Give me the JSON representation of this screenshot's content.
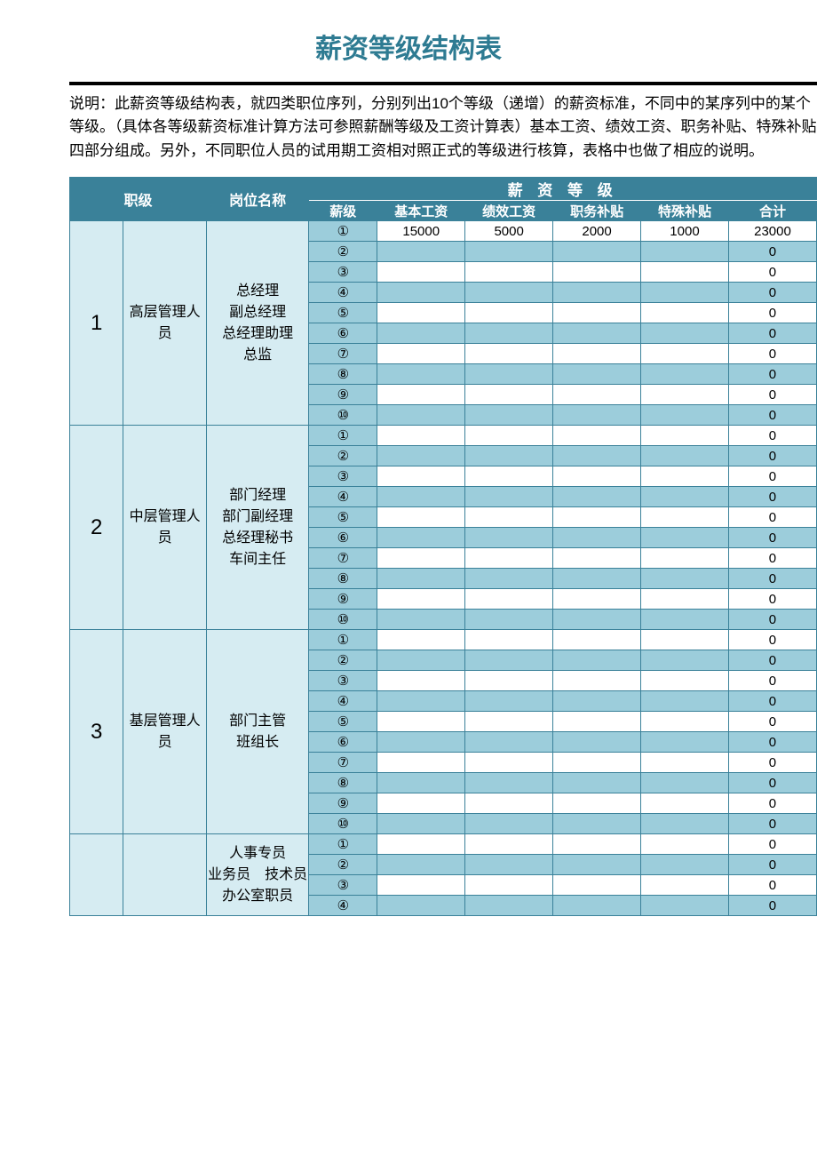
{
  "title": "薪资等级结构表",
  "description": "说明：此薪资等级结构表，就四类职位序列，分别列出10个等级（递增）的薪资标准，不同中的某序列中的某个等级。（具体各等级薪资标准计算方法可参照薪酬等级及工资计算表）基本工资、绩效工资、职务补贴、特殊补贴四部分组成。另外，不同职位人员的试用期工资相对照正式的等级进行核算，表格中也做了相应的说明。",
  "colors": {
    "header_bg": "#3a8199",
    "header_fg": "#ffffff",
    "light_bg": "#d6ecf2",
    "band_bg": "#9ccddb",
    "border": "#3a8199",
    "title_color": "#2e7b92"
  },
  "headers": {
    "rank": "职级",
    "position": "岗位名称",
    "salary_group": "薪 资 等 级",
    "level": "薪级",
    "base": "基本工资",
    "perf": "绩效工资",
    "duty": "职务补贴",
    "special": "特殊补贴",
    "total": "合计"
  },
  "level_symbols": [
    "①",
    "②",
    "③",
    "④",
    "⑤",
    "⑥",
    "⑦",
    "⑧",
    "⑨",
    "⑩"
  ],
  "groups": [
    {
      "rank": "1",
      "type": "高层管理人员",
      "positions": "总经理\n副总经理\n总经理助理\n总监",
      "rows": [
        {
          "base": "15000",
          "perf": "5000",
          "duty": "2000",
          "special": "1000",
          "total": "23000"
        },
        {
          "base": "",
          "perf": "",
          "duty": "",
          "special": "",
          "total": "0"
        },
        {
          "base": "",
          "perf": "",
          "duty": "",
          "special": "",
          "total": "0"
        },
        {
          "base": "",
          "perf": "",
          "duty": "",
          "special": "",
          "total": "0"
        },
        {
          "base": "",
          "perf": "",
          "duty": "",
          "special": "",
          "total": "0"
        },
        {
          "base": "",
          "perf": "",
          "duty": "",
          "special": "",
          "total": "0"
        },
        {
          "base": "",
          "perf": "",
          "duty": "",
          "special": "",
          "total": "0"
        },
        {
          "base": "",
          "perf": "",
          "duty": "",
          "special": "",
          "total": "0"
        },
        {
          "base": "",
          "perf": "",
          "duty": "",
          "special": "",
          "total": "0"
        },
        {
          "base": "",
          "perf": "",
          "duty": "",
          "special": "",
          "total": "0"
        }
      ]
    },
    {
      "rank": "2",
      "type": "中层管理人员",
      "positions": "部门经理\n部门副经理\n总经理秘书\n车间主任",
      "rows": [
        {
          "base": "",
          "perf": "",
          "duty": "",
          "special": "",
          "total": "0"
        },
        {
          "base": "",
          "perf": "",
          "duty": "",
          "special": "",
          "total": "0"
        },
        {
          "base": "",
          "perf": "",
          "duty": "",
          "special": "",
          "total": "0"
        },
        {
          "base": "",
          "perf": "",
          "duty": "",
          "special": "",
          "total": "0"
        },
        {
          "base": "",
          "perf": "",
          "duty": "",
          "special": "",
          "total": "0"
        },
        {
          "base": "",
          "perf": "",
          "duty": "",
          "special": "",
          "total": "0"
        },
        {
          "base": "",
          "perf": "",
          "duty": "",
          "special": "",
          "total": "0"
        },
        {
          "base": "",
          "perf": "",
          "duty": "",
          "special": "",
          "total": "0"
        },
        {
          "base": "",
          "perf": "",
          "duty": "",
          "special": "",
          "total": "0"
        },
        {
          "base": "",
          "perf": "",
          "duty": "",
          "special": "",
          "total": "0"
        }
      ]
    },
    {
      "rank": "3",
      "type": "基层管理人员",
      "positions": "部门主管\n班组长",
      "rows": [
        {
          "base": "",
          "perf": "",
          "duty": "",
          "special": "",
          "total": "0"
        },
        {
          "base": "",
          "perf": "",
          "duty": "",
          "special": "",
          "total": "0"
        },
        {
          "base": "",
          "perf": "",
          "duty": "",
          "special": "",
          "total": "0"
        },
        {
          "base": "",
          "perf": "",
          "duty": "",
          "special": "",
          "total": "0"
        },
        {
          "base": "",
          "perf": "",
          "duty": "",
          "special": "",
          "total": "0"
        },
        {
          "base": "",
          "perf": "",
          "duty": "",
          "special": "",
          "total": "0"
        },
        {
          "base": "",
          "perf": "",
          "duty": "",
          "special": "",
          "total": "0"
        },
        {
          "base": "",
          "perf": "",
          "duty": "",
          "special": "",
          "total": "0"
        },
        {
          "base": "",
          "perf": "",
          "duty": "",
          "special": "",
          "total": "0"
        },
        {
          "base": "",
          "perf": "",
          "duty": "",
          "special": "",
          "total": "0"
        }
      ]
    },
    {
      "rank": "",
      "type": "",
      "positions": "人事专员\n业务员　技术员\n办公室职员",
      "rows_visible": 4,
      "rows": [
        {
          "base": "",
          "perf": "",
          "duty": "",
          "special": "",
          "total": "0"
        },
        {
          "base": "",
          "perf": "",
          "duty": "",
          "special": "",
          "total": "0"
        },
        {
          "base": "",
          "perf": "",
          "duty": "",
          "special": "",
          "total": "0"
        },
        {
          "base": "",
          "perf": "",
          "duty": "",
          "special": "",
          "total": "0"
        }
      ]
    }
  ]
}
